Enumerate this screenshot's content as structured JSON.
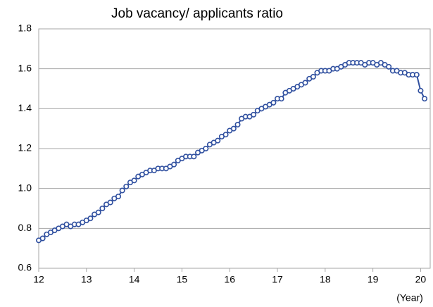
{
  "chart_data": {
    "type": "line",
    "title": "Job vacancy/ applicants ratio",
    "x_label": "(Year)",
    "x": [
      12,
      12.083,
      12.167,
      12.25,
      12.333,
      12.417,
      12.5,
      12.583,
      12.667,
      12.75,
      12.833,
      12.917,
      13,
      13.083,
      13.167,
      13.25,
      13.333,
      13.417,
      13.5,
      13.583,
      13.667,
      13.75,
      13.833,
      13.917,
      14,
      14.083,
      14.167,
      14.25,
      14.333,
      14.417,
      14.5,
      14.583,
      14.667,
      14.75,
      14.833,
      14.917,
      15,
      15.083,
      15.167,
      15.25,
      15.333,
      15.417,
      15.5,
      15.583,
      15.667,
      15.75,
      15.833,
      15.917,
      16,
      16.083,
      16.167,
      16.25,
      16.333,
      16.417,
      16.5,
      16.583,
      16.667,
      16.75,
      16.833,
      16.917,
      17,
      17.083,
      17.167,
      17.25,
      17.333,
      17.417,
      17.5,
      17.583,
      17.667,
      17.75,
      17.833,
      17.917,
      18,
      18.083,
      18.167,
      18.25,
      18.333,
      18.417,
      18.5,
      18.583,
      18.667,
      18.75,
      18.833,
      18.917,
      19,
      19.083,
      19.167,
      19.25,
      19.333,
      19.417,
      19.5,
      19.583,
      19.667,
      19.75,
      19.833,
      19.917,
      20,
      20.083
    ],
    "values": [
      0.74,
      0.75,
      0.77,
      0.78,
      0.79,
      0.8,
      0.81,
      0.82,
      0.81,
      0.82,
      0.82,
      0.83,
      0.84,
      0.85,
      0.87,
      0.88,
      0.9,
      0.92,
      0.93,
      0.95,
      0.96,
      0.99,
      1.01,
      1.03,
      1.04,
      1.06,
      1.07,
      1.08,
      1.09,
      1.09,
      1.1,
      1.1,
      1.1,
      1.11,
      1.12,
      1.14,
      1.15,
      1.16,
      1.16,
      1.16,
      1.18,
      1.19,
      1.2,
      1.22,
      1.23,
      1.24,
      1.26,
      1.27,
      1.29,
      1.3,
      1.32,
      1.35,
      1.36,
      1.36,
      1.37,
      1.39,
      1.4,
      1.41,
      1.42,
      1.43,
      1.45,
      1.45,
      1.48,
      1.49,
      1.5,
      1.51,
      1.52,
      1.53,
      1.55,
      1.56,
      1.58,
      1.59,
      1.59,
      1.59,
      1.6,
      1.6,
      1.61,
      1.62,
      1.63,
      1.63,
      1.63,
      1.63,
      1.62,
      1.63,
      1.63,
      1.62,
      1.63,
      1.62,
      1.61,
      1.59,
      1.59,
      1.58,
      1.58,
      1.57,
      1.57,
      1.57,
      1.49,
      1.45
    ],
    "color": "#2f4f9f",
    "marker_fill": "#ffffff",
    "xlim": [
      12,
      20.2
    ],
    "xticks": [
      12,
      13,
      14,
      15,
      16,
      17,
      18,
      19,
      20
    ],
    "ylim": [
      0.6,
      1.8
    ],
    "yticks": [
      0.6,
      0.8,
      {
        "value": 1,
        "label": "1.0"
      },
      1.2,
      1.4,
      1.6,
      1.8
    ],
    "grid": true
  }
}
